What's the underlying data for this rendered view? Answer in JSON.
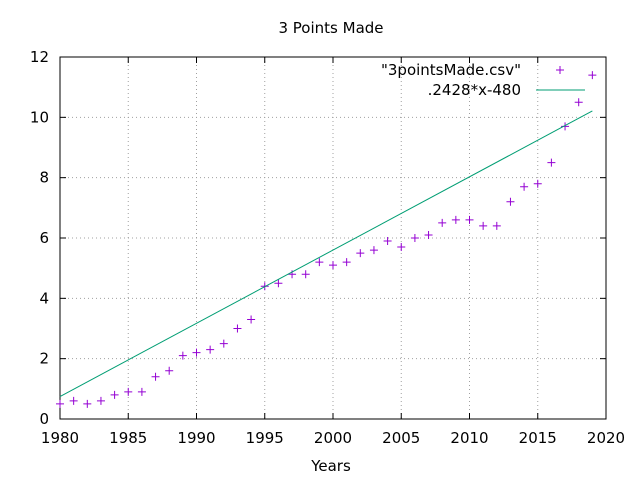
{
  "chart_data": {
    "type": "scatter",
    "title": "3 Points Made",
    "xlabel": "Years",
    "ylabel": "",
    "xlim": [
      1980,
      2020
    ],
    "ylim": [
      0,
      12
    ],
    "xticks": [
      1980,
      1985,
      1990,
      1995,
      2000,
      2005,
      2010,
      2015,
      2020
    ],
    "yticks": [
      0,
      2,
      4,
      6,
      8,
      10,
      12
    ],
    "grid": true,
    "legend_position": "top-right",
    "series": [
      {
        "name": "\"3pointsMade.csv\"",
        "kind": "points",
        "marker": "plus",
        "color": "#9400d3",
        "x": [
          1980,
          1981,
          1982,
          1983,
          1984,
          1985,
          1986,
          1987,
          1988,
          1989,
          1990,
          1991,
          1992,
          1993,
          1994,
          1995,
          1996,
          1997,
          1998,
          1999,
          2000,
          2001,
          2002,
          2003,
          2004,
          2005,
          2006,
          2007,
          2008,
          2009,
          2010,
          2011,
          2012,
          2013,
          2014,
          2015,
          2016,
          2017,
          2018,
          2019
        ],
        "y": [
          0.5,
          0.6,
          0.5,
          0.6,
          0.8,
          0.9,
          0.9,
          1.4,
          1.6,
          2.1,
          2.2,
          2.3,
          2.5,
          3.0,
          3.3,
          4.4,
          4.5,
          4.8,
          4.8,
          5.2,
          5.1,
          5.2,
          5.5,
          5.6,
          5.9,
          5.7,
          6.0,
          6.1,
          6.5,
          6.6,
          6.6,
          6.4,
          6.4,
          7.2,
          7.7,
          7.8,
          8.5,
          9.7,
          10.5,
          11.4
        ]
      },
      {
        "name": ".2428*x-480",
        "kind": "line",
        "color": "#009e73",
        "slope": 0.2428,
        "intercept": -480,
        "x": [
          1980,
          2019
        ]
      }
    ]
  }
}
